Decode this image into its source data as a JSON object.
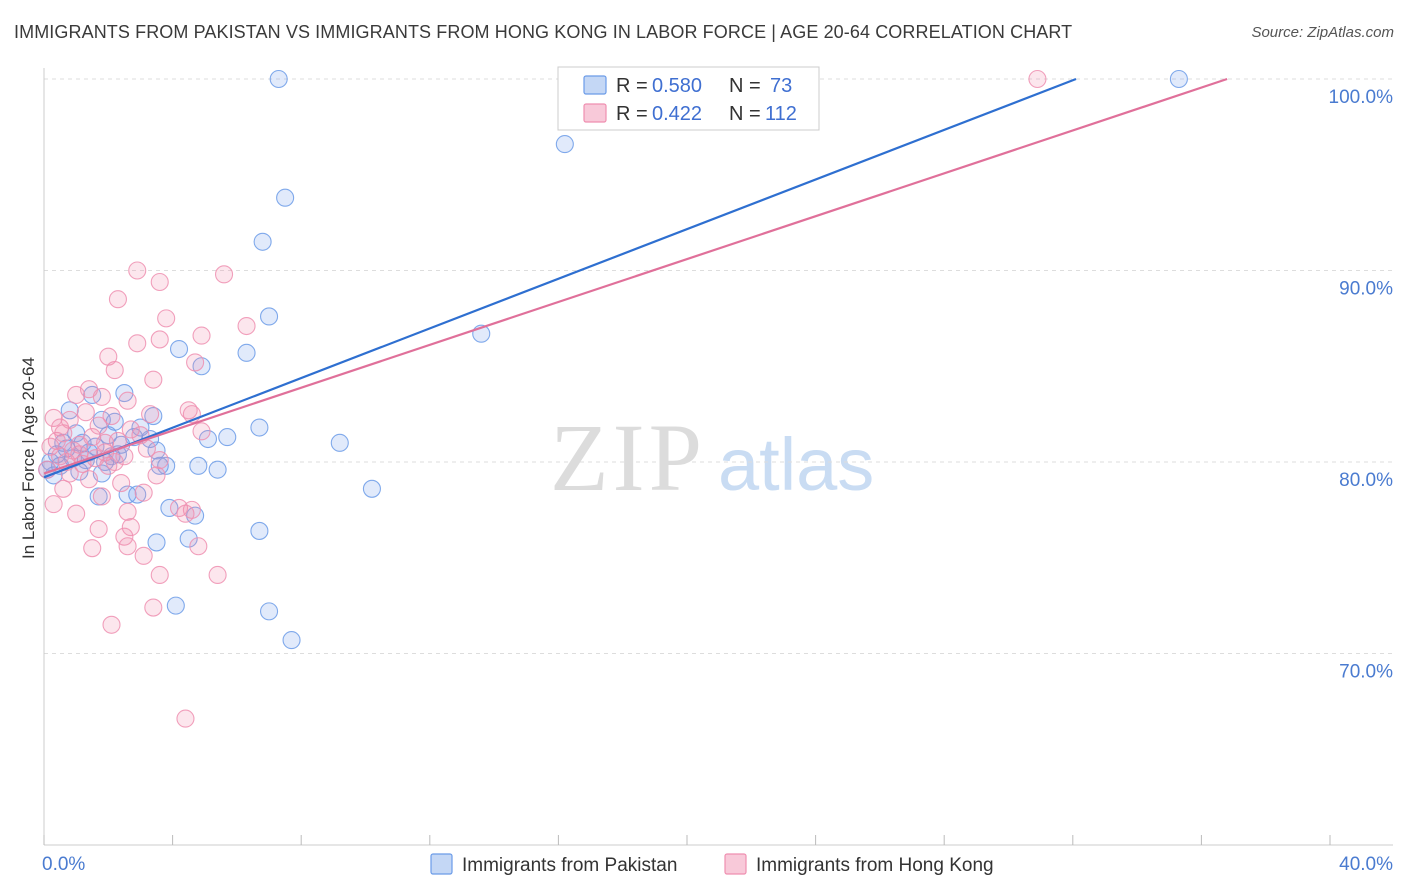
{
  "title": "IMMIGRANTS FROM PAKISTAN VS IMMIGRANTS FROM HONG KONG IN LABOR FORCE | AGE 20-64 CORRELATION CHART",
  "source": "Source: ZipAtlas.com",
  "watermark": {
    "zip": "ZIP",
    "atlas": "atlas"
  },
  "chart_data": {
    "type": "scatter",
    "title": "IMMIGRANTS FROM PAKISTAN VS IMMIGRANTS FROM HONG KONG IN LABOR FORCE | AGE 20-64 CORRELATION CHART",
    "xlabel": "",
    "ylabel": "In Labor Force | Age 20-64",
    "xlim": [
      0,
      40
    ],
    "ylim": [
      60,
      100
    ],
    "x_tick_labels": [
      "0.0%",
      "40.0%"
    ],
    "y_ticks": [
      70,
      80,
      90,
      100
    ],
    "y_tick_labels": [
      "70.0%",
      "80.0%",
      "90.0%",
      "100.0%"
    ],
    "grid": true,
    "legend_position": "top-center",
    "stats": [
      {
        "r_label": "R =",
        "r": "0.580",
        "n_label": "N =",
        "n": "73"
      },
      {
        "r_label": "R =",
        "r": "0.422",
        "n_label": "N =",
        "n": "112"
      }
    ],
    "series": [
      {
        "name": "Immigrants from Pakistan",
        "color": "#6b9be8",
        "line_color": "#2e6fd0",
        "trend": {
          "x": [
            0.0,
            32.1
          ],
          "y": [
            79.2,
            100.0
          ]
        },
        "points": [
          [
            7.3,
            100.0
          ],
          [
            16.2,
            96.6
          ],
          [
            7.5,
            93.8
          ],
          [
            6.8,
            91.5
          ],
          [
            7.0,
            87.6
          ],
          [
            13.6,
            86.7
          ],
          [
            4.2,
            85.9
          ],
          [
            6.3,
            85.7
          ],
          [
            4.9,
            85.0
          ],
          [
            2.5,
            83.6
          ],
          [
            1.5,
            83.5
          ],
          [
            0.8,
            82.7
          ],
          [
            3.4,
            82.4
          ],
          [
            1.8,
            82.2
          ],
          [
            2.2,
            82.1
          ],
          [
            3.0,
            81.8
          ],
          [
            6.7,
            81.8
          ],
          [
            1.0,
            81.5
          ],
          [
            2.0,
            81.4
          ],
          [
            5.7,
            81.3
          ],
          [
            5.1,
            81.2
          ],
          [
            3.3,
            81.2
          ],
          [
            2.8,
            81.3
          ],
          [
            1.2,
            81.0
          ],
          [
            9.2,
            81.0
          ],
          [
            0.6,
            81.0
          ],
          [
            1.6,
            80.8
          ],
          [
            3.5,
            80.6
          ],
          [
            2.3,
            80.4
          ],
          [
            0.4,
            80.4
          ],
          [
            2.1,
            80.3
          ],
          [
            1.4,
            80.5
          ],
          [
            0.9,
            80.2
          ],
          [
            1.9,
            80.0
          ],
          [
            0.2,
            80.0
          ],
          [
            0.5,
            79.8
          ],
          [
            3.8,
            79.8
          ],
          [
            3.6,
            79.8
          ],
          [
            4.8,
            79.8
          ],
          [
            5.4,
            79.6
          ],
          [
            1.1,
            79.5
          ],
          [
            0.3,
            79.3
          ],
          [
            10.2,
            78.6
          ],
          [
            2.6,
            78.3
          ],
          [
            2.9,
            78.3
          ],
          [
            1.7,
            78.2
          ],
          [
            3.9,
            77.6
          ],
          [
            4.7,
            77.2
          ],
          [
            6.7,
            76.4
          ],
          [
            4.5,
            76.0
          ],
          [
            3.5,
            75.8
          ],
          [
            4.1,
            72.5
          ],
          [
            7.0,
            72.2
          ],
          [
            7.7,
            70.7
          ],
          [
            35.3,
            100.0
          ],
          [
            0.7,
            80.7
          ],
          [
            2.4,
            80.9
          ],
          [
            1.3,
            80.1
          ],
          [
            0.1,
            79.6
          ],
          [
            1.8,
            79.4
          ]
        ]
      },
      {
        "name": "Immigrants from Hong Kong",
        "color": "#ef8fb0",
        "line_color": "#e0709a",
        "trend": {
          "x": [
            0.0,
            36.8
          ],
          "y": [
            79.4,
            100.0
          ]
        },
        "points": [
          [
            30.9,
            100.0
          ],
          [
            2.9,
            90.0
          ],
          [
            5.6,
            89.8
          ],
          [
            3.6,
            89.4
          ],
          [
            2.3,
            88.5
          ],
          [
            3.8,
            87.5
          ],
          [
            6.3,
            87.1
          ],
          [
            4.9,
            86.6
          ],
          [
            3.6,
            86.4
          ],
          [
            2.9,
            86.2
          ],
          [
            2.0,
            85.5
          ],
          [
            4.7,
            85.2
          ],
          [
            2.2,
            84.8
          ],
          [
            3.4,
            84.3
          ],
          [
            1.4,
            83.8
          ],
          [
            1.0,
            83.5
          ],
          [
            1.8,
            83.4
          ],
          [
            2.6,
            83.2
          ],
          [
            0.3,
            82.3
          ],
          [
            1.3,
            82.6
          ],
          [
            4.5,
            82.7
          ],
          [
            3.3,
            82.5
          ],
          [
            2.1,
            82.4
          ],
          [
            4.6,
            82.5
          ],
          [
            0.8,
            82.2
          ],
          [
            1.7,
            81.9
          ],
          [
            2.7,
            81.7
          ],
          [
            4.9,
            81.6
          ],
          [
            0.6,
            81.5
          ],
          [
            3.0,
            81.4
          ],
          [
            1.5,
            81.3
          ],
          [
            0.4,
            81.1
          ],
          [
            2.3,
            81.1
          ],
          [
            1.1,
            80.9
          ],
          [
            0.2,
            80.8
          ],
          [
            3.2,
            80.7
          ],
          [
            0.9,
            80.6
          ],
          [
            1.9,
            80.5
          ],
          [
            0.5,
            80.3
          ],
          [
            2.5,
            80.3
          ],
          [
            1.6,
            80.2
          ],
          [
            3.6,
            80.1
          ],
          [
            0.7,
            80.0
          ],
          [
            1.2,
            79.9
          ],
          [
            2.0,
            79.8
          ],
          [
            0.1,
            79.6
          ],
          [
            3.5,
            79.3
          ],
          [
            1.4,
            79.1
          ],
          [
            2.4,
            78.9
          ],
          [
            0.6,
            78.6
          ],
          [
            3.1,
            78.4
          ],
          [
            1.8,
            78.2
          ],
          [
            0.3,
            77.8
          ],
          [
            4.2,
            77.6
          ],
          [
            4.6,
            77.5
          ],
          [
            2.6,
            77.4
          ],
          [
            1.0,
            77.3
          ],
          [
            4.4,
            77.3
          ],
          [
            2.7,
            76.6
          ],
          [
            1.7,
            76.5
          ],
          [
            2.5,
            76.1
          ],
          [
            4.8,
            75.6
          ],
          [
            2.6,
            75.6
          ],
          [
            1.5,
            75.5
          ],
          [
            3.1,
            75.1
          ],
          [
            3.6,
            74.1
          ],
          [
            5.4,
            74.1
          ],
          [
            3.4,
            72.4
          ],
          [
            2.1,
            71.5
          ],
          [
            4.4,
            66.6
          ],
          [
            0.5,
            81.8
          ],
          [
            1.1,
            80.4
          ],
          [
            2.2,
            80.0
          ],
          [
            0.8,
            79.4
          ],
          [
            1.9,
            81.0
          ]
        ]
      }
    ]
  }
}
